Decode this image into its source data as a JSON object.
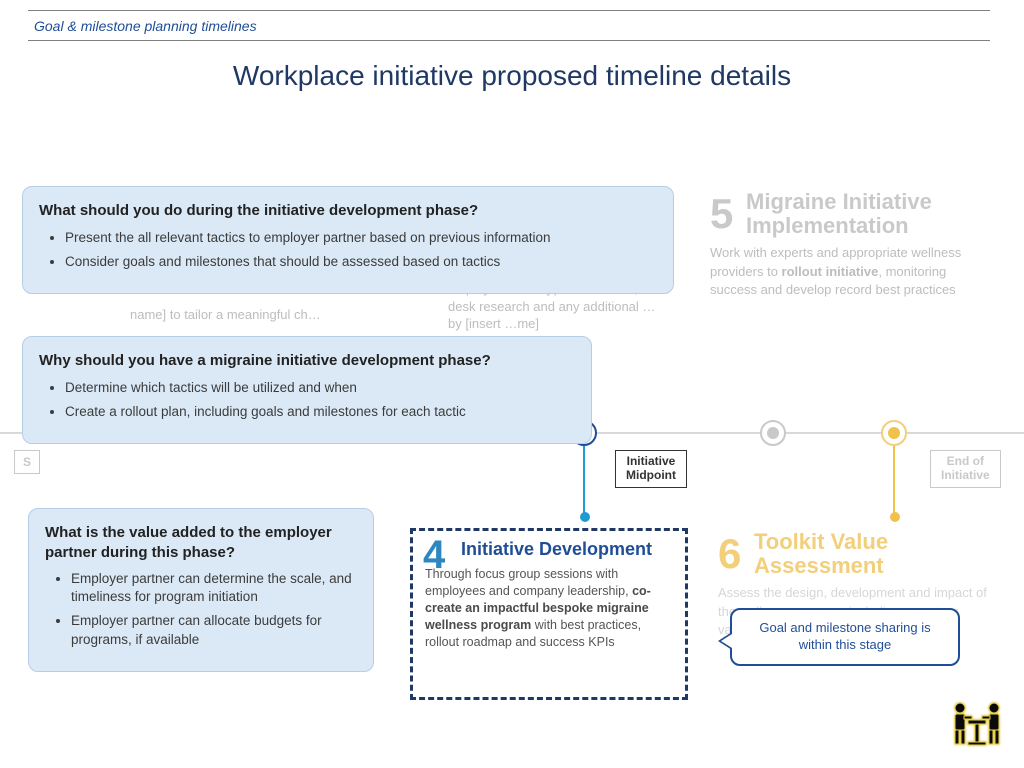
{
  "breadcrumb": "Goal & milestone planning timelines",
  "title": "Workplace initiative proposed timeline details",
  "card1": {
    "heading": "What should you do during the initiative development phase?",
    "bullets": [
      "Present the all relevant tactics to employer partner based on previous information",
      "Consider goals and milestones that should be assessed based on tactics"
    ]
  },
  "card2": {
    "heading": "Why should you have a migraine initiative development phase?",
    "bullets": [
      "Determine which tactics will be utilized and when",
      "Create a rollout plan, including goals and milestones for each tactic"
    ]
  },
  "card3": {
    "heading": "What is the value added to the employer partner during this phase?",
    "bullets": [
      "Employer partner can determine the scale, and timeliness for program initiation",
      "Employer partner can allocate budgets for programs, if available"
    ]
  },
  "step4": {
    "num": "4",
    "title": "Initiative Development",
    "body_pre": "Through focus group sessions with employees and company leadership, ",
    "body_bold": "co-create an impactful bespoke migraine wellness program",
    "body_post": " with best practices, rollout roadmap and success KPIs"
  },
  "step5": {
    "num": "5",
    "title": "Migraine Initiative Implementation",
    "body_pre": "Work with experts and appropriate wellness providers to ",
    "body_bold": "rollout initiative",
    "body_post": ", monitoring success and develop record best practices"
  },
  "step6": {
    "num": "6",
    "title": "Toolkit Value Assessment",
    "body": "Assess the design, development and impact of the wellness program, including monetary value"
  },
  "timeline": {
    "start_label": "S",
    "midpoint_label": "Initiative\nMidpoint",
    "end_label": "End of\nInitiative"
  },
  "goal_bubble": "Goal and milestone sharing is within this stage",
  "ghost": {
    "snip1": "name] to tailor a meaningful ch…",
    "snip2": "employer's name] previous work, desk research and any additional … by  [insert …me]",
    "snip3": "…e"
  },
  "colors": {
    "brand_navy": "#1f3864",
    "brand_blue": "#1f4e97",
    "accent_cyan": "#1f9ccf",
    "accent_yellow": "#f0c24a",
    "card_bg": "#dbe9f6",
    "ghost_gray": "#c9c9c9"
  }
}
